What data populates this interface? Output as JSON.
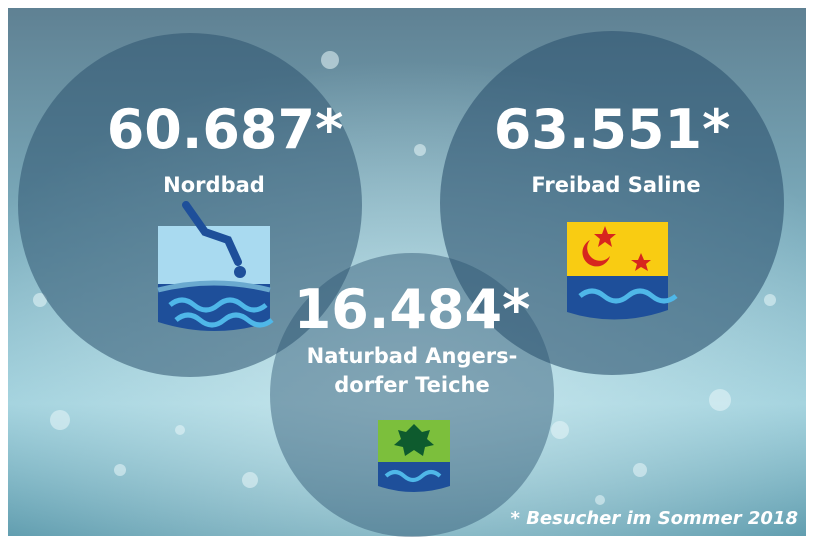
{
  "items": [
    {
      "value": "60.687*",
      "name": [
        "Nordbad"
      ]
    },
    {
      "value": "63.551*",
      "name": [
        "Freibad Saline"
      ]
    },
    {
      "value": "16.484*",
      "name": [
        "Naturbad Angers-",
        "dorfer Teiche"
      ]
    }
  ],
  "footnote": "* Besucher im Sommer 2018"
}
